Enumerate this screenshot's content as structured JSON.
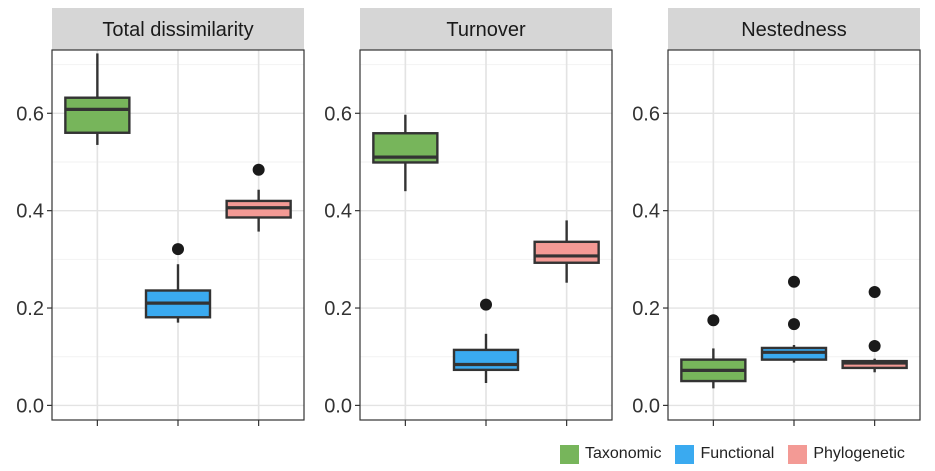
{
  "chart_data": {
    "type": "box",
    "facets": [
      "Total dissimilarity",
      "Turnover",
      "Nestedness"
    ],
    "ylim": [
      -0.03,
      0.73
    ],
    "yticks": [
      0.0,
      0.2,
      0.4,
      0.6
    ],
    "ytick_labels": [
      "0.0",
      "0.2",
      "0.4",
      "0.6"
    ],
    "series": [
      {
        "name": "Taxonomic",
        "color": "#77b55b"
      },
      {
        "name": "Functional",
        "color": "#3aaaf0"
      },
      {
        "name": "Phylogenetic",
        "color": "#f39a95"
      }
    ],
    "boxes": [
      [
        {
          "lower_whisker": 0.535,
          "q1": 0.56,
          "median": 0.608,
          "q3": 0.632,
          "upper_whisker": 0.723,
          "outliers": []
        },
        {
          "lower_whisker": 0.17,
          "q1": 0.181,
          "median": 0.21,
          "q3": 0.236,
          "upper_whisker": 0.29,
          "outliers": [
            0.321
          ]
        },
        {
          "lower_whisker": 0.357,
          "q1": 0.386,
          "median": 0.406,
          "q3": 0.42,
          "upper_whisker": 0.443,
          "outliers": [
            0.484
          ]
        }
      ],
      [
        {
          "lower_whisker": 0.44,
          "q1": 0.499,
          "median": 0.51,
          "q3": 0.559,
          "upper_whisker": 0.597,
          "outliers": []
        },
        {
          "lower_whisker": 0.046,
          "q1": 0.073,
          "median": 0.084,
          "q3": 0.114,
          "upper_whisker": 0.147,
          "outliers": [
            0.207
          ]
        },
        {
          "lower_whisker": 0.252,
          "q1": 0.293,
          "median": 0.307,
          "q3": 0.336,
          "upper_whisker": 0.38,
          "outliers": []
        }
      ],
      [
        {
          "lower_whisker": 0.035,
          "q1": 0.05,
          "median": 0.072,
          "q3": 0.094,
          "upper_whisker": 0.117,
          "outliers": [
            0.175
          ]
        },
        {
          "lower_whisker": 0.088,
          "q1": 0.094,
          "median": 0.109,
          "q3": 0.118,
          "upper_whisker": 0.124,
          "outliers": [
            0.167,
            0.254
          ]
        },
        {
          "lower_whisker": 0.068,
          "q1": 0.077,
          "median": 0.087,
          "q3": 0.091,
          "upper_whisker": 0.096,
          "outliers": [
            0.122,
            0.233
          ]
        }
      ]
    ],
    "grid": true,
    "legend_position": "bottom-right"
  }
}
